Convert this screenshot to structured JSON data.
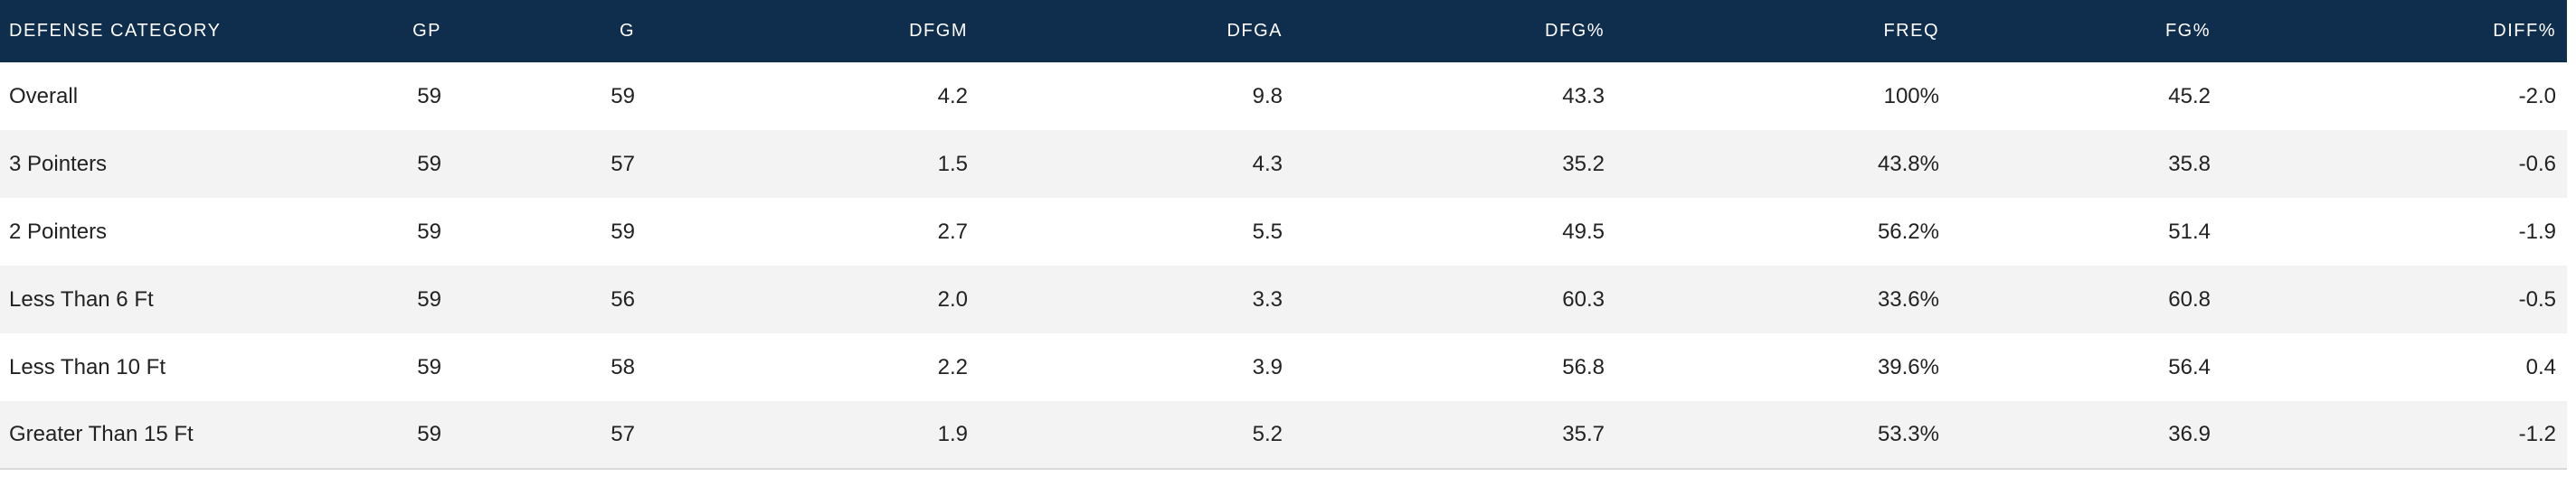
{
  "table": {
    "columns": [
      "DEFENSE CATEGORY",
      "GP",
      "G",
      "DFGM",
      "DFGA",
      "DFG%",
      "FREQ",
      "FG%",
      "DIFF%"
    ],
    "rows": [
      [
        "Overall",
        "59",
        "59",
        "4.2",
        "9.8",
        "43.3",
        "100%",
        "45.2",
        "-2.0"
      ],
      [
        "3 Pointers",
        "59",
        "57",
        "1.5",
        "4.3",
        "35.2",
        "43.8%",
        "35.8",
        "-0.6"
      ],
      [
        "2 Pointers",
        "59",
        "59",
        "2.7",
        "5.5",
        "49.5",
        "56.2%",
        "51.4",
        "-1.9"
      ],
      [
        "Less Than 6 Ft",
        "59",
        "56",
        "2.0",
        "3.3",
        "60.3",
        "33.6%",
        "60.8",
        "-0.5"
      ],
      [
        "Less Than 10 Ft",
        "59",
        "58",
        "2.2",
        "3.9",
        "56.8",
        "39.6%",
        "56.4",
        "0.4"
      ],
      [
        "Greater Than 15 Ft",
        "59",
        "57",
        "1.9",
        "5.2",
        "35.7",
        "53.3%",
        "36.9",
        "-1.2"
      ]
    ]
  },
  "colors": {
    "header_bg": "#0f2d4d",
    "header_text": "#ffffff",
    "row_alt_bg": "#f3f3f3",
    "cell_text": "#222222"
  }
}
